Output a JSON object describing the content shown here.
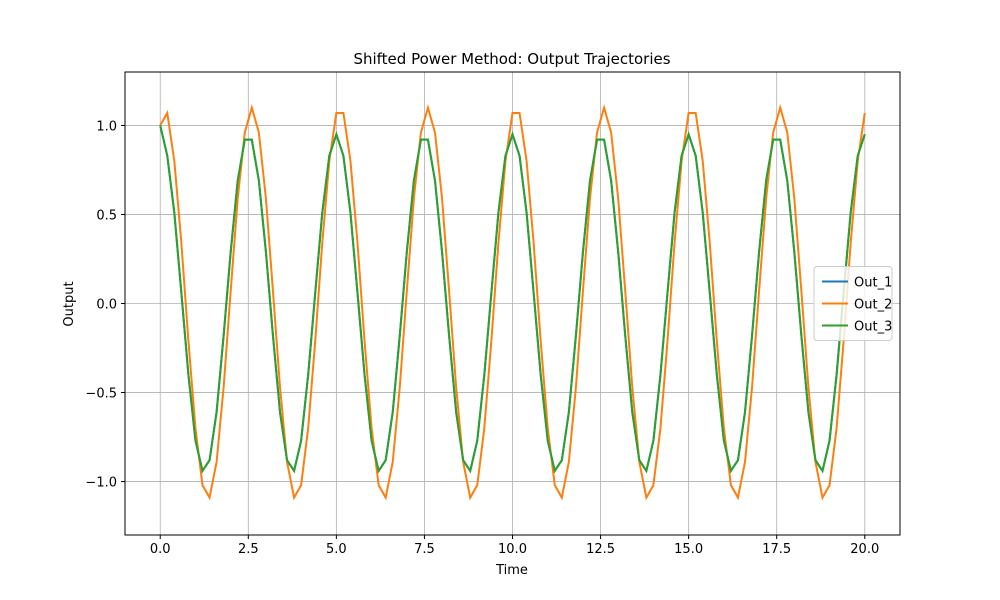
{
  "chart_data": {
    "type": "line",
    "title": "Shifted Power Method: Output Trajectories",
    "xlabel": "Time",
    "ylabel": "Output",
    "x": [
      0,
      0.2,
      0.4,
      0.6,
      0.8,
      1.0,
      1.2,
      1.4,
      1.6,
      1.8,
      2.0,
      2.2,
      2.4,
      2.6,
      2.8,
      3.0,
      3.2,
      3.4,
      3.6,
      3.8,
      4.0,
      4.2,
      4.4,
      4.6,
      4.8,
      5.0,
      5.2,
      5.4,
      5.6,
      5.8,
      6.0,
      6.2,
      6.4,
      6.6,
      6.8,
      7.0,
      7.2,
      7.4,
      7.6,
      7.8,
      8.0,
      8.2,
      8.4,
      8.6,
      8.8,
      9.0,
      9.2,
      9.4,
      9.6,
      9.8,
      10.0,
      10.2,
      10.4,
      10.6,
      10.8,
      11.0,
      11.2,
      11.4,
      11.6,
      11.8,
      12.0,
      12.2,
      12.4,
      12.6,
      12.8,
      13.0,
      13.2,
      13.4,
      13.6,
      13.8,
      14.0,
      14.2,
      14.4,
      14.6,
      14.8,
      15.0,
      15.2,
      15.4,
      15.6,
      15.8,
      16.0,
      16.2,
      16.4,
      16.6,
      16.8,
      17.0,
      17.2,
      17.4,
      17.6,
      17.8,
      18.0,
      18.2,
      18.4,
      18.6,
      18.8,
      19.0,
      19.2,
      19.4,
      19.6,
      19.8,
      20.0
    ],
    "series": [
      {
        "name": "Out_1",
        "color": "#1f77b4",
        "values": [
          1.0,
          0.83,
          0.51,
          0.06,
          -0.4,
          -0.77,
          -0.94,
          -0.88,
          -0.61,
          -0.18,
          0.29,
          0.69,
          0.92,
          0.92,
          0.69,
          0.29,
          -0.18,
          -0.61,
          -0.88,
          -0.94,
          -0.77,
          -0.4,
          0.06,
          0.51,
          0.83,
          0.95,
          0.83,
          0.51,
          0.06,
          -0.4,
          -0.77,
          -0.94,
          -0.88,
          -0.61,
          -0.18,
          0.29,
          0.69,
          0.92,
          0.92,
          0.69,
          0.29,
          -0.18,
          -0.61,
          -0.88,
          -0.94,
          -0.77,
          -0.4,
          0.06,
          0.51,
          0.83,
          0.95,
          0.83,
          0.51,
          0.06,
          -0.4,
          -0.77,
          -0.94,
          -0.88,
          -0.61,
          -0.18,
          0.29,
          0.69,
          0.92,
          0.92,
          0.69,
          0.29,
          -0.18,
          -0.61,
          -0.88,
          -0.94,
          -0.77,
          -0.4,
          0.06,
          0.51,
          0.83,
          0.95,
          0.83,
          0.51,
          0.06,
          -0.4,
          -0.77,
          -0.94,
          -0.88,
          -0.61,
          -0.18,
          0.29,
          0.69,
          0.92,
          0.92,
          0.69,
          0.29,
          -0.18,
          -0.61,
          -0.88,
          -0.94,
          -0.77,
          -0.4,
          0.06,
          0.51,
          0.83,
          0.95
        ]
      },
      {
        "name": "Out_2",
        "color": "#ff7f0e",
        "values": [
          1.0,
          1.07,
          0.8,
          0.34,
          -0.21,
          -0.7,
          -1.02,
          -1.09,
          -0.89,
          -0.47,
          0.07,
          0.59,
          0.96,
          1.1,
          0.96,
          0.59,
          0.07,
          -0.47,
          -0.89,
          -1.09,
          -1.02,
          -0.7,
          -0.21,
          0.34,
          0.8,
          1.07,
          1.07,
          0.8,
          0.34,
          -0.21,
          -0.7,
          -1.02,
          -1.09,
          -0.89,
          -0.47,
          0.07,
          0.59,
          0.96,
          1.1,
          0.96,
          0.59,
          0.07,
          -0.47,
          -0.89,
          -1.09,
          -1.02,
          -0.7,
          -0.21,
          0.34,
          0.8,
          1.07,
          1.07,
          0.8,
          0.34,
          -0.21,
          -0.7,
          -1.02,
          -1.09,
          -0.89,
          -0.47,
          0.07,
          0.59,
          0.96,
          1.1,
          0.96,
          0.59,
          0.07,
          -0.47,
          -0.89,
          -1.09,
          -1.02,
          -0.7,
          -0.21,
          0.34,
          0.8,
          1.07,
          1.07,
          0.8,
          0.34,
          -0.21,
          -0.7,
          -1.02,
          -1.09,
          -0.89,
          -0.47,
          0.07,
          0.59,
          0.96,
          1.1,
          0.96,
          0.59,
          0.07,
          -0.47,
          -0.89,
          -1.09,
          -1.02,
          -0.7,
          -0.21,
          0.34,
          0.8,
          1.07
        ]
      },
      {
        "name": "Out_3",
        "color": "#2ca02c",
        "values": [
          1.0,
          0.83,
          0.51,
          0.06,
          -0.4,
          -0.77,
          -0.94,
          -0.88,
          -0.61,
          -0.18,
          0.29,
          0.69,
          0.92,
          0.92,
          0.69,
          0.29,
          -0.18,
          -0.61,
          -0.88,
          -0.94,
          -0.77,
          -0.4,
          0.06,
          0.51,
          0.83,
          0.95,
          0.83,
          0.51,
          0.06,
          -0.4,
          -0.77,
          -0.94,
          -0.88,
          -0.61,
          -0.18,
          0.29,
          0.69,
          0.92,
          0.92,
          0.69,
          0.29,
          -0.18,
          -0.61,
          -0.88,
          -0.94,
          -0.77,
          -0.4,
          0.06,
          0.51,
          0.83,
          0.95,
          0.83,
          0.51,
          0.06,
          -0.4,
          -0.77,
          -0.94,
          -0.88,
          -0.61,
          -0.18,
          0.29,
          0.69,
          0.92,
          0.92,
          0.69,
          0.29,
          -0.18,
          -0.61,
          -0.88,
          -0.94,
          -0.77,
          -0.4,
          0.06,
          0.51,
          0.83,
          0.95,
          0.83,
          0.51,
          0.06,
          -0.4,
          -0.77,
          -0.94,
          -0.88,
          -0.61,
          -0.18,
          0.29,
          0.69,
          0.92,
          0.92,
          0.69,
          0.29,
          -0.18,
          -0.61,
          -0.88,
          -0.94,
          -0.77,
          -0.4,
          0.06,
          0.51,
          0.83,
          0.95
        ]
      }
    ],
    "xlim": [
      -1.0,
      21.0
    ],
    "ylim": [
      -1.3,
      1.3
    ],
    "xticks": [
      {
        "value": 0,
        "label": "0.0"
      },
      {
        "value": 2.5,
        "label": "2.5"
      },
      {
        "value": 5,
        "label": "5.0"
      },
      {
        "value": 7.5,
        "label": "7.5"
      },
      {
        "value": 10,
        "label": "10.0"
      },
      {
        "value": 12.5,
        "label": "12.5"
      },
      {
        "value": 15,
        "label": "15.0"
      },
      {
        "value": 17.5,
        "label": "17.5"
      },
      {
        "value": 20,
        "label": "20.0"
      }
    ],
    "yticks": [
      {
        "value": -1,
        "label": "−1.0"
      },
      {
        "value": -0.5,
        "label": "−0.5"
      },
      {
        "value": 0,
        "label": "0.0"
      },
      {
        "value": 0.5,
        "label": "0.5"
      },
      {
        "value": 1,
        "label": "1.0"
      }
    ],
    "grid": true,
    "legend": "right"
  }
}
